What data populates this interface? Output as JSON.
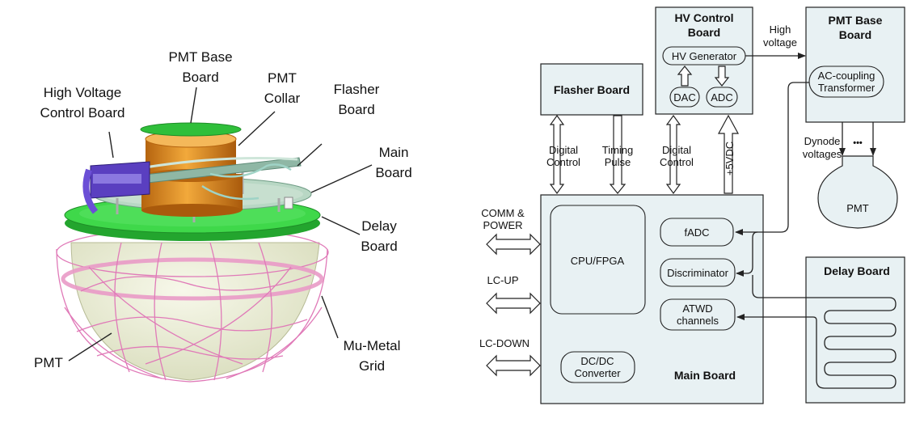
{
  "left": {
    "labels": {
      "pmt_base_board": [
        "PMT Base",
        "Board"
      ],
      "hv_control_board": [
        "High Voltage",
        "Control Board"
      ],
      "pmt_collar": [
        "PMT",
        "Collar"
      ],
      "flasher_board": [
        "Flasher",
        "Board"
      ],
      "main_board": [
        "Main",
        "Board"
      ],
      "delay_board": [
        "Delay",
        "Board"
      ],
      "mu_metal_grid": [
        "Mu-Metal",
        "Grid"
      ],
      "pmt": "PMT"
    }
  },
  "right": {
    "hv_control": {
      "title": [
        "HV Control",
        "Board"
      ],
      "hv_generator": "HV Generator",
      "dac": "DAC",
      "adc": "ADC"
    },
    "high_voltage": [
      "High",
      "voltage"
    ],
    "pmt_base": {
      "title": [
        "PMT Base",
        "Board"
      ],
      "transformer": [
        "AC-coupling",
        "Transformer"
      ]
    },
    "dynode_voltages": [
      "Dynode",
      "voltages"
    ],
    "ellipsis": "•••",
    "pmt": "PMT",
    "flasher_board": "Flasher Board",
    "signals": {
      "digital_control_1": [
        "Digital",
        "Control"
      ],
      "timing_pulse": [
        "Timing",
        "Pulse"
      ],
      "digital_control_2": [
        "Digital",
        "Control"
      ],
      "plus5vdc": "+5VDC"
    },
    "left_ports": {
      "comm_power": [
        "COMM &",
        "POWER"
      ],
      "lc_up": "LC-UP",
      "lc_down": "LC-DOWN"
    },
    "main_board": {
      "title": "Main Board",
      "cpu_fpga": "CPU/FPGA",
      "fadc": "fADC",
      "discriminator": "Discriminator",
      "atwd": [
        "ATWD",
        "channels"
      ],
      "dcdc": [
        "DC/DC",
        "Converter"
      ]
    },
    "delay_board": "Delay Board"
  },
  "colors": {
    "block_fill": "#e8f1f3",
    "board_green": "#2fbf3a",
    "collar_orange": "#e08a1e",
    "cable_purple": "#5a3fc0",
    "grid_pink": "#e07ab8",
    "sphere_fill": "#ecefd6"
  }
}
